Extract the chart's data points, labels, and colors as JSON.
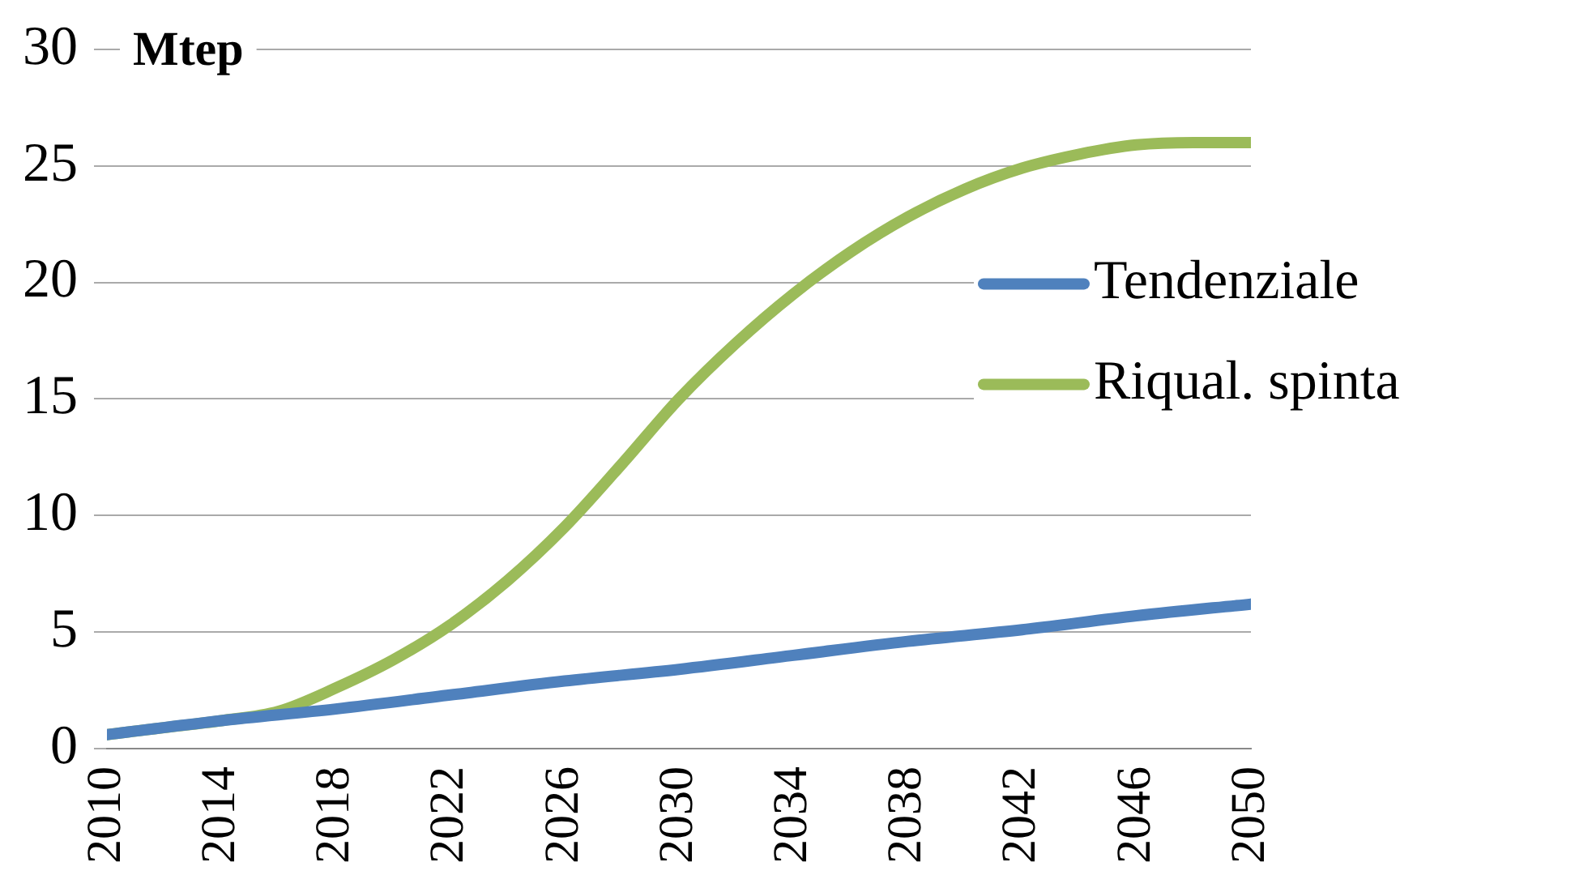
{
  "chart_data": {
    "type": "line",
    "ylabel": "Mtep",
    "xlim": [
      2010,
      2050
    ],
    "xticks": [
      2010,
      2014,
      2018,
      2022,
      2026,
      2030,
      2034,
      2038,
      2042,
      2046,
      2050
    ],
    "ylim": [
      0,
      30
    ],
    "yticks": [
      0,
      5,
      10,
      15,
      20,
      25,
      30
    ],
    "grid": "y",
    "legend": "right",
    "marker": "none",
    "line_style": "solid",
    "series": [
      {
        "name": "Tendenziale",
        "color": "#4f81bd",
        "x": [
          2010,
          2014,
          2018,
          2022,
          2026,
          2030,
          2034,
          2038,
          2042,
          2046,
          2050
        ],
        "values": [
          0.6,
          1.2,
          1.7,
          2.3,
          2.9,
          3.4,
          4.0,
          4.6,
          5.1,
          5.7,
          6.2
        ]
      },
      {
        "name": "Riqual. spinta",
        "color": "#9bbb59",
        "x": [
          2010,
          2012,
          2014,
          2016,
          2018,
          2020,
          2022,
          2024,
          2026,
          2028,
          2030,
          2032,
          2034,
          2036,
          2038,
          2040,
          2042,
          2044,
          2046,
          2048,
          2050
        ],
        "values": [
          0.6,
          0.9,
          1.2,
          1.6,
          2.6,
          3.8,
          5.3,
          7.2,
          9.5,
          12.2,
          15.0,
          17.4,
          19.5,
          21.3,
          22.8,
          24.0,
          24.9,
          25.5,
          25.9,
          26.0,
          26.0
        ]
      }
    ]
  }
}
